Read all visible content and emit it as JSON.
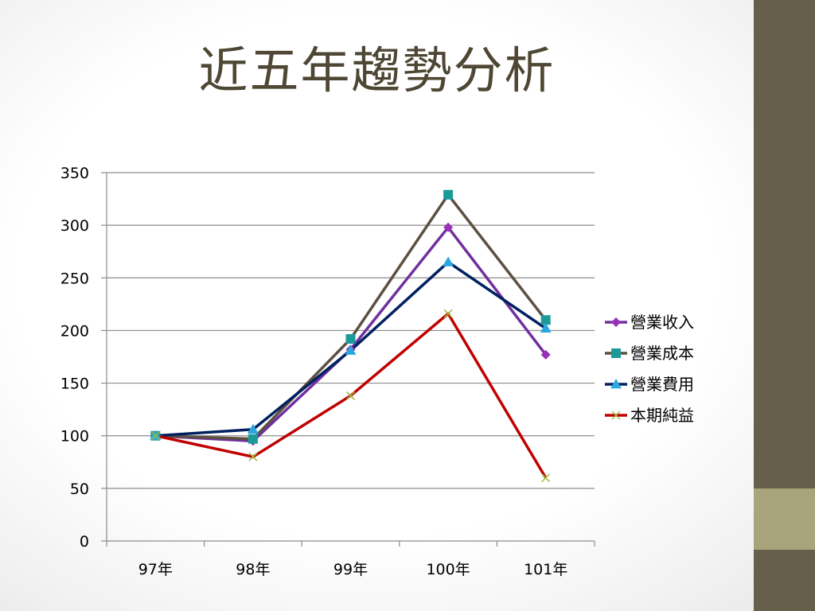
{
  "slide": {
    "title": "近五年趨勢分析",
    "colors": {
      "sidebar": "#665f4a",
      "sidebar_accent": "#a8a47c",
      "title": "#4e4733"
    }
  },
  "chart_data": {
    "type": "line",
    "title": "",
    "xlabel": "",
    "ylabel": "",
    "categories": [
      "97年",
      "98年",
      "99年",
      "100年",
      "101年"
    ],
    "ylim": [
      0,
      350
    ],
    "yticks": [
      0,
      50,
      100,
      150,
      200,
      250,
      300,
      350
    ],
    "grid": true,
    "legend_position": "right",
    "series": [
      {
        "name": "營業收入",
        "values": [
          100,
          95,
          182,
          298,
          177
        ],
        "color": "#7030a0",
        "marker_color": "#9b30b8",
        "marker": "diamond"
      },
      {
        "name": "營業成本",
        "values": [
          100,
          97,
          192,
          329,
          210
        ],
        "color": "#5c5041",
        "marker_color": "#1b9a9a",
        "marker": "square"
      },
      {
        "name": "營業費用",
        "values": [
          100,
          106,
          181,
          265,
          202
        ],
        "color": "#002060",
        "marker_color": "#2aa7e0",
        "marker": "triangle"
      },
      {
        "name": "本期純益",
        "values": [
          100,
          80,
          138,
          216,
          60
        ],
        "color": "#c00000",
        "marker_color": "#9bbb3b",
        "marker": "x"
      }
    ]
  }
}
